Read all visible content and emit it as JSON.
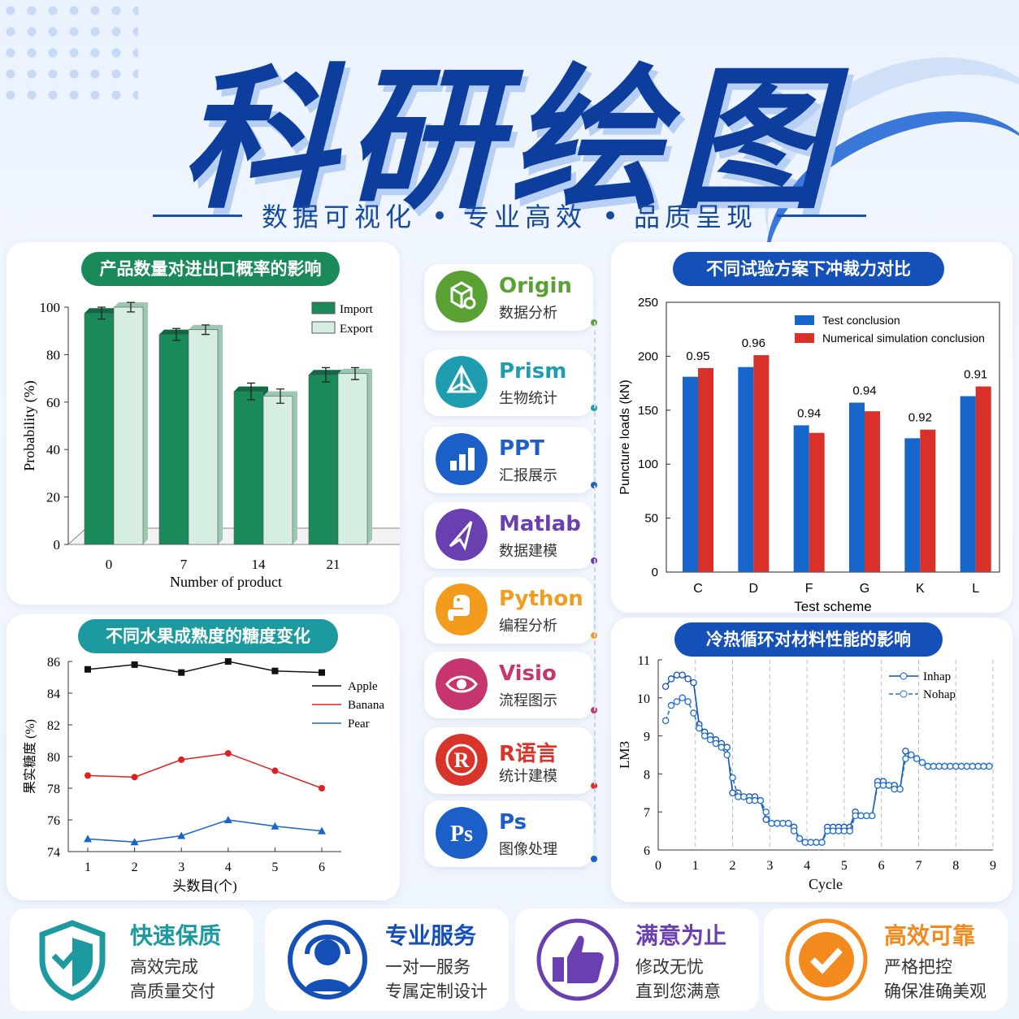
{
  "header": {
    "title": "科研绘图",
    "tagline": [
      "数据可视化",
      "专业高效",
      "品质呈现"
    ]
  },
  "colors": {
    "brand": "#0d3e9e",
    "green": "#1a8a5a",
    "teal": "#1d9aa0",
    "blue": "#1450b8"
  },
  "panels": {
    "p1_title": "产品数量对进出口概率的影响",
    "p2_title": "不同试验方案下冲裁力对比",
    "p3_title": "不同水果成熟度的糖度变化",
    "p4_title": "冷热循环对材料性能的影响"
  },
  "tools": [
    {
      "name": "Origin",
      "desc": "数据分析",
      "icon": "cube-icon",
      "color": "#5aa134"
    },
    {
      "name": "Prism",
      "desc": "生物统计",
      "icon": "prism-icon",
      "color": "#1e9db0"
    },
    {
      "name": "PPT",
      "desc": "汇报展示",
      "icon": "bar-chart-icon",
      "color": "#1d5fc9"
    },
    {
      "name": "Matlab",
      "desc": "数据建模",
      "icon": "paper-plane-icon",
      "color": "#6a3fb0"
    },
    {
      "name": "Python",
      "desc": "编程分析",
      "icon": "python-icon",
      "color": "#f29b1d"
    },
    {
      "name": "Visio",
      "desc": "流程图示",
      "icon": "eye-icon",
      "color": "#c7356f"
    },
    {
      "name": "R语言",
      "desc": "统计建模",
      "icon": "registered-icon",
      "color": "#d8342a"
    },
    {
      "name": "Ps",
      "desc": "图像处理",
      "icon": "ps-icon",
      "color": "#1d5fc9"
    }
  ],
  "features": [
    {
      "title": "快速保质",
      "l1": "高效完成",
      "l2": "高质量交付",
      "color": "#1d9aa0",
      "icon": "shield-check-icon"
    },
    {
      "title": "专业服务",
      "l1": "一对一服务",
      "l2": "专属定制设计",
      "color": "#1450b8",
      "icon": "support-headset-icon"
    },
    {
      "title": "满意为止",
      "l1": "修改无忧",
      "l2": "直到您满意",
      "color": "#6a3fb0",
      "icon": "thumbs-up-icon"
    },
    {
      "title": "高效可靠",
      "l1": "严格把控",
      "l2": "确保准确美观",
      "color": "#f28a1d",
      "icon": "check-badge-icon"
    }
  ],
  "chart_data": [
    {
      "type": "bar",
      "categories": [
        "0",
        "7",
        "14",
        "21"
      ],
      "series": [
        {
          "name": "Import",
          "values": [
            97.5,
            88.5,
            64.5,
            71.5
          ],
          "err": [
            2.5,
            2.5,
            3.5,
            3
          ]
        },
        {
          "name": "Export",
          "values": [
            100,
            90.5,
            62.5,
            72
          ],
          "err": [
            2,
            2,
            3,
            2.5
          ]
        }
      ],
      "xlabel": "Number of product",
      "ylabel": "Probability (%)",
      "ylim": [
        0,
        100
      ],
      "yticks": [
        "0",
        "20",
        "40",
        "60",
        "80",
        "100"
      ]
    },
    {
      "type": "bar",
      "categories": [
        "C",
        "D",
        "F",
        "G",
        "K",
        "L"
      ],
      "series": [
        {
          "name": "Test conclusion",
          "values": [
            181,
            190,
            136,
            157,
            124,
            163
          ]
        },
        {
          "name": "Numerical simulation conclusion",
          "values": [
            189,
            201,
            129,
            149,
            132,
            172
          ]
        }
      ],
      "labels": [
        "0.95",
        "0.96",
        "0.94",
        "0.94",
        "0.92",
        "0.91"
      ],
      "xlabel": "Test scheme",
      "ylabel": "Puncture loads (kN)",
      "ylim": [
        0,
        250
      ],
      "yticks": [
        "0",
        "50",
        "100",
        "150",
        "200",
        "250"
      ]
    },
    {
      "type": "line",
      "x": [
        1,
        2,
        3,
        4,
        5,
        6
      ],
      "series": [
        {
          "name": "Apple",
          "values": [
            85.5,
            85.8,
            85.3,
            86,
            85.4,
            85.3
          ]
        },
        {
          "name": "Banana",
          "values": [
            78.8,
            78.7,
            79.8,
            80.2,
            79.1,
            78
          ]
        },
        {
          "name": "Pear",
          "values": [
            74.8,
            74.6,
            75,
            76,
            75.6,
            75.3
          ]
        }
      ],
      "xlabel": "头数目(个)",
      "ylabel": "果实糖度 (%)",
      "ylim": [
        74,
        86
      ],
      "yticks": [
        "74",
        "76",
        "78",
        "80",
        "82",
        "84",
        "86"
      ],
      "xticks": [
        "1",
        "2",
        "3",
        "4",
        "5",
        "6"
      ]
    },
    {
      "type": "line",
      "x": [
        0.2,
        0.35,
        0.5,
        0.65,
        0.8,
        0.95,
        1.1,
        1.25,
        1.4,
        1.55,
        1.7,
        1.85,
        2.0,
        2.15,
        2.3,
        2.45,
        2.6,
        2.75,
        2.9,
        3.05,
        3.2,
        3.35,
        3.5,
        3.65,
        3.8,
        3.95,
        4.1,
        4.25,
        4.4,
        4.55,
        4.7,
        4.85,
        5.0,
        5.15,
        5.3,
        5.45,
        5.6,
        5.75,
        5.9,
        6.05,
        6.2,
        6.35,
        6.5,
        6.65,
        6.8,
        6.95,
        7.1,
        7.25,
        7.4,
        7.55,
        7.7,
        7.85,
        8.0,
        8.15,
        8.3,
        8.45,
        8.6,
        8.75,
        8.9
      ],
      "series": [
        {
          "name": "Inhap",
          "values": [
            10.3,
            10.5,
            10.6,
            10.6,
            10.5,
            10.4,
            9.3,
            9.1,
            9.0,
            8.9,
            8.8,
            8.7,
            7.5,
            7.5,
            7.4,
            7.4,
            7.4,
            7.3,
            6.8,
            6.7,
            6.7,
            6.7,
            6.7,
            6.6,
            6.3,
            6.2,
            6.2,
            6.2,
            6.2,
            6.6,
            6.6,
            6.6,
            6.6,
            6.6,
            7.0,
            6.9,
            6.9,
            6.9,
            7.8,
            7.8,
            7.7,
            7.7,
            7.6,
            8.6,
            8.5,
            8.4,
            8.3,
            8.2,
            8.2,
            8.2,
            8.2,
            8.2,
            8.2,
            8.2,
            8.2,
            8.2,
            8.2,
            8.2,
            8.2
          ]
        },
        {
          "name": "Nohap",
          "values": [
            9.4,
            9.8,
            9.9,
            10.0,
            9.9,
            9.6,
            9.2,
            9.0,
            8.9,
            8.8,
            8.7,
            8.5,
            7.9,
            7.4,
            7.4,
            7.3,
            7.3,
            7.3,
            7.0,
            6.7,
            6.7,
            6.7,
            6.7,
            6.5,
            6.3,
            6.2,
            6.2,
            6.2,
            6.2,
            6.5,
            6.5,
            6.5,
            6.5,
            6.5,
            6.9,
            6.9,
            6.9,
            6.9,
            7.7,
            7.7,
            7.7,
            7.6,
            7.6,
            8.4,
            8.5,
            8.4,
            8.3,
            8.2,
            8.2,
            8.2,
            8.2,
            8.2,
            8.2,
            8.2,
            8.2,
            8.2,
            8.2,
            8.2,
            8.2
          ]
        }
      ],
      "xlabel": "Cycle",
      "ylabel": "LM3",
      "ylim": [
        6,
        11
      ],
      "xlim": [
        0,
        9
      ],
      "yticks": [
        "6",
        "7",
        "8",
        "9",
        "10",
        "11"
      ],
      "xticks": [
        "0",
        "1",
        "2",
        "3",
        "4",
        "5",
        "6",
        "7",
        "8",
        "9"
      ]
    }
  ]
}
